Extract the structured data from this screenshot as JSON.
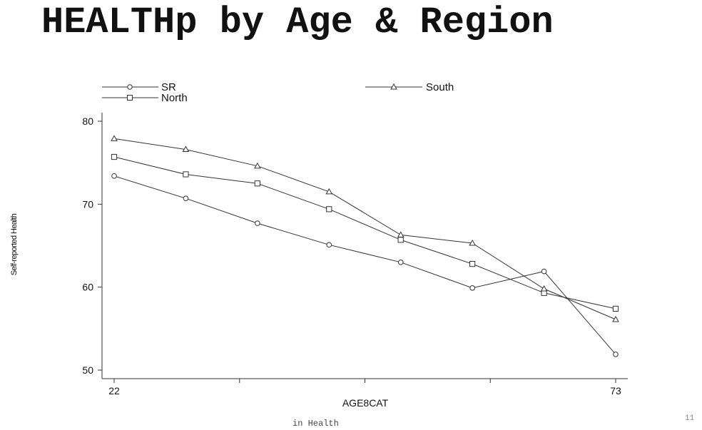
{
  "slide": {
    "title": "HEALTHp by Age & Region",
    "footer": "in Health",
    "page_number": "11"
  },
  "chart_data": {
    "type": "line",
    "xlabel": "AGE8CAT",
    "ylabel": "Self-reported Health",
    "x_tick_labels": [
      "22",
      "73"
    ],
    "x_endpoints": [
      22,
      73
    ],
    "ylim": [
      50,
      80
    ],
    "yticks": [
      50,
      60,
      70,
      80
    ],
    "grid": false,
    "legend_position": "top",
    "line_color": "#333333",
    "x": [
      1,
      2,
      3,
      4,
      5,
      6,
      7,
      8
    ],
    "series": [
      {
        "name": "SR",
        "marker": "circle",
        "values": [
          73.4,
          70.7,
          67.7,
          65.1,
          63.0,
          59.9,
          61.9,
          51.9
        ]
      },
      {
        "name": "North",
        "marker": "square",
        "values": [
          75.7,
          73.6,
          72.5,
          69.4,
          65.7,
          62.8,
          59.3,
          57.4
        ]
      },
      {
        "name": "South",
        "marker": "triangle",
        "values": [
          77.9,
          76.6,
          74.6,
          71.5,
          66.3,
          65.3,
          59.8,
          56.1
        ]
      }
    ]
  }
}
